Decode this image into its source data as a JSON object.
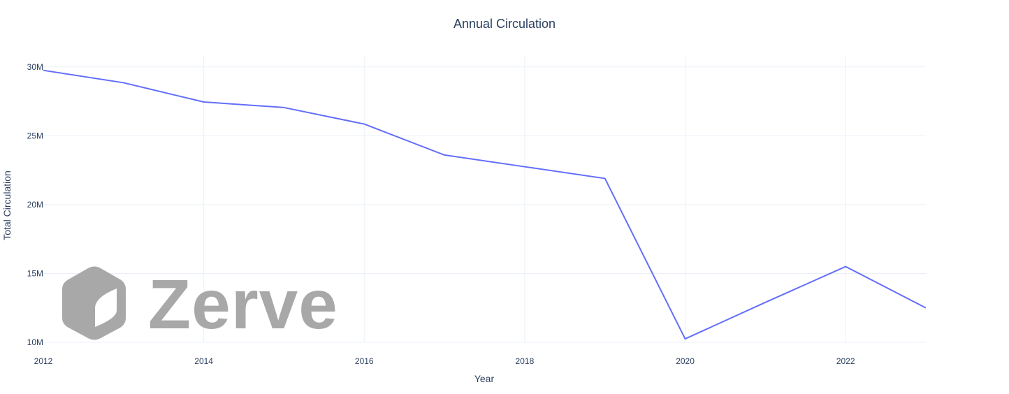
{
  "colors": {
    "line": "#636efa",
    "text": "#2a3f5f",
    "grid": "#ebf0f8",
    "watermark": "#a8a8a9"
  },
  "watermark": {
    "text": "Zerve",
    "icon": "zerve-logo-icon"
  },
  "chart_data": {
    "type": "line",
    "title": "Annual Circulation",
    "xlabel": "Year",
    "ylabel": "Total Circulation",
    "xlim": [
      2012,
      2023
    ],
    "ylim": [
      10000000,
      30800000
    ],
    "grid": true,
    "legend": "none",
    "x_ticks": [
      2012,
      2014,
      2016,
      2018,
      2020,
      2022
    ],
    "x_tick_labels": [
      "2012",
      "2014",
      "2016",
      "2018",
      "2020",
      "2022"
    ],
    "y_ticks": [
      10000000,
      15000000,
      20000000,
      25000000,
      30000000
    ],
    "y_tick_labels": [
      "10M",
      "15M",
      "20M",
      "25M",
      "30M"
    ],
    "series": [
      {
        "name": "Total Circulation",
        "x": [
          2012,
          2013,
          2014,
          2015,
          2016,
          2017,
          2018,
          2019,
          2020,
          2021,
          2022,
          2023
        ],
        "values": [
          29750000,
          28850000,
          27450000,
          27050000,
          25850000,
          23600000,
          22750000,
          21900000,
          10250000,
          12900000,
          15500000,
          12500000
        ]
      }
    ]
  }
}
